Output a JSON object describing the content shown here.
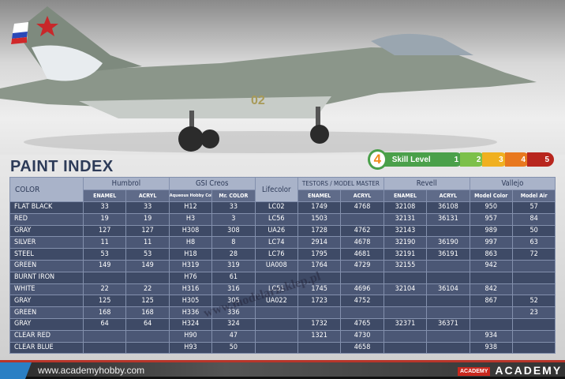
{
  "title": "PAINT INDEX",
  "skill": {
    "label": "Skill Level",
    "level": 4,
    "steps": [
      "1",
      "2",
      "3",
      "4",
      "5"
    ],
    "colors": [
      "#4aa04a",
      "#7cc04a",
      "#f0b020",
      "#e8781e",
      "#b8261e"
    ]
  },
  "headers": {
    "color": "COLOR",
    "groups": [
      "Humbrol",
      "GSI Creos",
      "Lifecolor",
      "TESTORS / MODEL MASTER",
      "Revell",
      "Vallejo"
    ],
    "sub": [
      "ENAMEL",
      "ACRYL",
      "Aqueous Hobby Color",
      "Mr. COLOR",
      "ENAMEL",
      "ACRYL",
      "ENAMEL",
      "ACRYL",
      "Model Color",
      "Model Air"
    ]
  },
  "rows": [
    [
      "FLAT BLACK",
      "33",
      "33",
      "H12",
      "33",
      "LC02",
      "1749",
      "4768",
      "32108",
      "36108",
      "950",
      "57"
    ],
    [
      "RED",
      "19",
      "19",
      "H3",
      "3",
      "LC56",
      "1503",
      "",
      "32131",
      "36131",
      "957",
      "84"
    ],
    [
      "GRAY",
      "127",
      "127",
      "H308",
      "308",
      "UA26",
      "1728",
      "4762",
      "32143",
      "",
      "989",
      "50"
    ],
    [
      "SILVER",
      "11",
      "11",
      "H8",
      "8",
      "LC74",
      "2914",
      "4678",
      "32190",
      "36190",
      "997",
      "63"
    ],
    [
      "STEEL",
      "53",
      "53",
      "H18",
      "28",
      "LC76",
      "1795",
      "4681",
      "32191",
      "36191",
      "863",
      "72"
    ],
    [
      "GREEN",
      "149",
      "149",
      "H319",
      "319",
      "UA008",
      "1764",
      "4729",
      "32155",
      "",
      "942",
      ""
    ],
    [
      "BURNT IRON",
      "",
      "",
      "H76",
      "61",
      "",
      "",
      "",
      "",
      "",
      "",
      ""
    ],
    [
      "WHITE",
      "22",
      "22",
      "H316",
      "316",
      "LC51",
      "1745",
      "4696",
      "32104",
      "36104",
      "842",
      ""
    ],
    [
      "GRAY",
      "125",
      "125",
      "H305",
      "305",
      "UA022",
      "1723",
      "4752",
      "",
      "",
      "867",
      "52"
    ],
    [
      "GREEN",
      "168",
      "168",
      "H336",
      "336",
      "",
      "",
      "",
      "",
      "",
      "",
      "23"
    ],
    [
      "GRAY",
      "64",
      "64",
      "H324",
      "324",
      "",
      "1732",
      "4765",
      "32371",
      "36371",
      "",
      ""
    ],
    [
      "CLEAR RED",
      "",
      "",
      "H90",
      "47",
      "",
      "1321",
      "4730",
      "",
      "",
      "934",
      ""
    ],
    [
      "CLEAR BLUE",
      "",
      "",
      "H93",
      "50",
      "",
      "",
      "4658",
      "",
      "",
      "938",
      ""
    ]
  ],
  "watermark": "www.modelarzsklep.pl",
  "footer": {
    "url": "www.academyhobby.com",
    "badge": "ACADEMY",
    "brand": "ACADEMY"
  },
  "aircraft_marking": "02"
}
